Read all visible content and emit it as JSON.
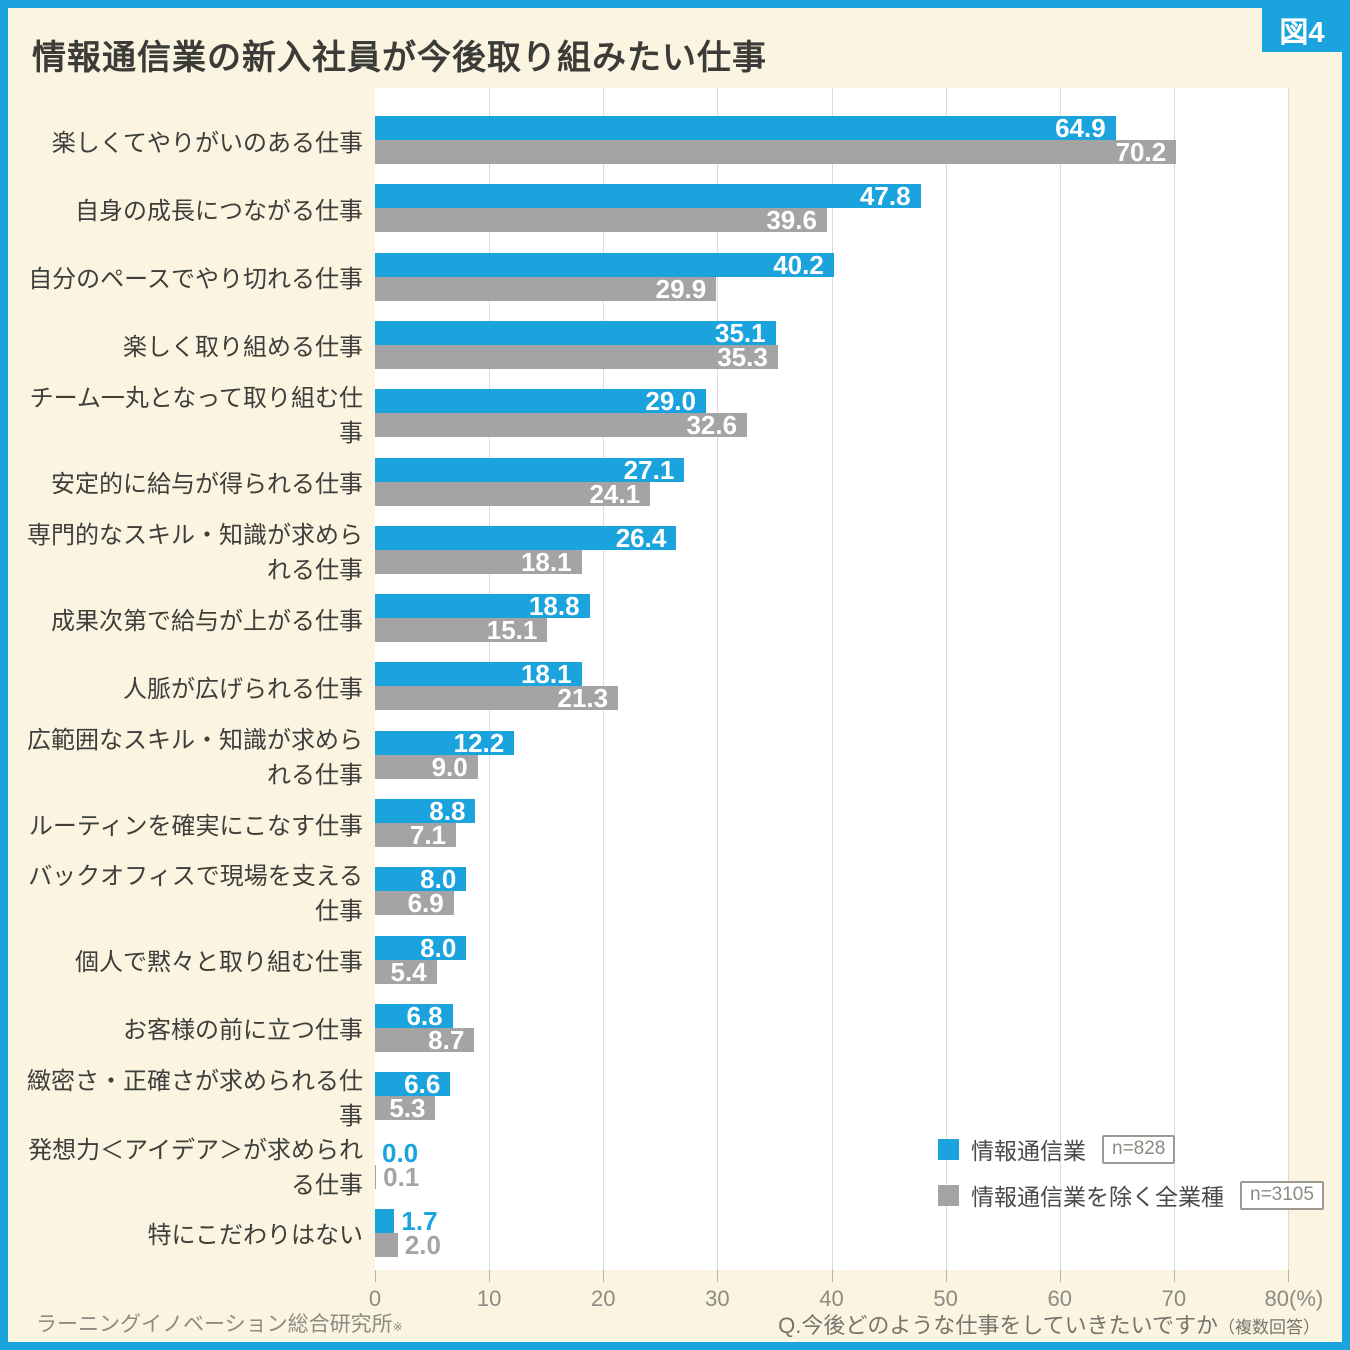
{
  "figure_label": "図4",
  "title": "情報通信業の新入社員が今後取り組みたい仕事",
  "colors": {
    "blue": "#1AA3DC",
    "gray": "#A4A4A4",
    "frame": "#1AA3DC",
    "background": "#FAF4E0",
    "plot_background": "#FFFFFF",
    "grid": "#DCDCD8"
  },
  "legend": {
    "items": [
      {
        "label": "情報通信業",
        "n_label": "n=828",
        "color_key": "blue"
      },
      {
        "label": "情報通信業を除く全業種",
        "n_label": "n=3105",
        "color_key": "gray"
      }
    ]
  },
  "footer": {
    "source": "ラーニングイノベーション総合研究所",
    "source_mark": "※",
    "question": "Q.今後どのような仕事をしていきたいですか",
    "question_note": "（複数回答）"
  },
  "chart_data": {
    "type": "bar",
    "orientation": "horizontal",
    "title": "情報通信業の新入社員が今後取り組みたい仕事",
    "categories": [
      "楽しくてやりがいのある仕事",
      "自身の成長につながる仕事",
      "自分のペースでやり切れる仕事",
      "楽しく取り組める仕事",
      "チーム一丸となって取り組む仕事",
      "安定的に給与が得られる仕事",
      "専門的なスキル・知識が求められる仕事",
      "成果次第で給与が上がる仕事",
      "人脈が広げられる仕事",
      "広範囲なスキル・知識が求められる仕事",
      "ルーティンを確実にこなす仕事",
      "バックオフィスで現場を支える仕事",
      "個人で黙々と取り組む仕事",
      "お客様の前に立つ仕事",
      "緻密さ・正確さが求められる仕事",
      "発想力＜アイデア＞が求められる仕事",
      "特にこだわりはない"
    ],
    "series": [
      {
        "name": "情報通信業",
        "n": 828,
        "color": "#1AA3DC",
        "values": [
          64.9,
          47.8,
          40.2,
          35.1,
          29.0,
          27.1,
          26.4,
          18.8,
          18.1,
          12.2,
          8.8,
          8.0,
          8.0,
          6.8,
          6.6,
          0.0,
          1.7
        ]
      },
      {
        "name": "情報通信業を除く全業種",
        "n": 3105,
        "color": "#A4A4A4",
        "values": [
          70.2,
          39.6,
          29.9,
          35.3,
          32.6,
          24.1,
          18.1,
          15.1,
          21.3,
          9.0,
          7.1,
          6.9,
          5.4,
          8.7,
          5.3,
          0.1,
          2.0
        ]
      }
    ],
    "xlim": [
      0,
      80
    ],
    "xticks": [
      0,
      10,
      20,
      30,
      40,
      50,
      60,
      70,
      80
    ],
    "x_unit": "(%)",
    "grid": true,
    "legend_position": "inside-bottom-right"
  }
}
